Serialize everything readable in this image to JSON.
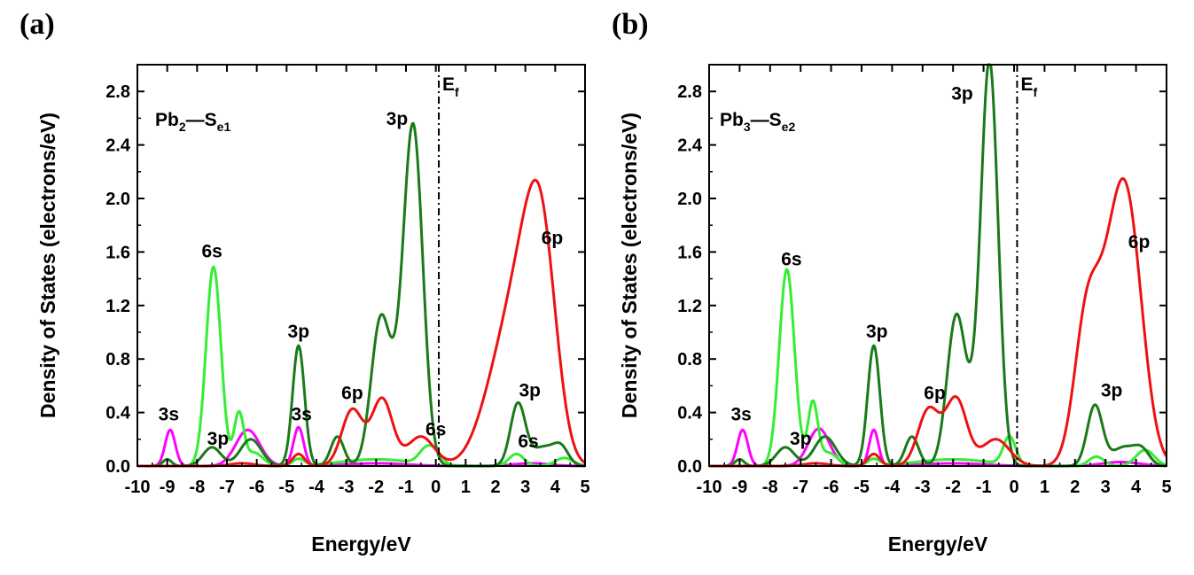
{
  "chart_data": [
    {
      "type": "line",
      "panel_label": "(a)",
      "system_label": {
        "base": "Pb",
        "sub1": "2",
        "bond": "—",
        "atom": "S",
        "sub2": "e1"
      },
      "fermi_label": {
        "base": "E",
        "sub": "f"
      },
      "fermi_energy": 0.1,
      "xlabel": "Energy/eV",
      "ylabel": "Density of States (electrons/eV)",
      "xlim": [
        -10,
        5
      ],
      "ylim": [
        0,
        3.0
      ],
      "xticks": [
        -10,
        -9,
        -8,
        -7,
        -6,
        -5,
        -4,
        -3,
        -2,
        -1,
        0,
        1,
        2,
        3,
        4,
        5
      ],
      "xtick_labels": [
        "-10",
        "-9",
        "-8",
        "-7",
        "-6",
        "-5",
        "-4",
        "-3",
        "-2",
        "-1",
        "0",
        "1",
        "2",
        "3",
        "4",
        "5"
      ],
      "yticks": [
        0.0,
        0.4,
        0.8,
        1.2,
        1.6,
        2.0,
        2.4,
        2.8
      ],
      "ytick_labels": [
        "0.0",
        "0.4",
        "0.8",
        "1.2",
        "1.6",
        "2.0",
        "2.4",
        "2.8"
      ],
      "grid": false,
      "series": [
        {
          "color": "#ff00ff",
          "peaks": [
            [
              -8.9,
              0.27,
              0.17
            ],
            [
              -6.3,
              0.27,
              0.4
            ],
            [
              -4.6,
              0.29,
              0.17
            ],
            [
              -2.0,
              0.02,
              1.0
            ],
            [
              3.2,
              0.02,
              0.6
            ]
          ]
        },
        {
          "color": "#33ee33",
          "peaks": [
            [
              -7.45,
              1.49,
              0.25
            ],
            [
              -6.6,
              0.38,
              0.16
            ],
            [
              -6.1,
              0.1,
              0.3
            ],
            [
              -4.6,
              0.05,
              0.2
            ],
            [
              -2.0,
              0.05,
              1.2
            ],
            [
              -0.3,
              0.12,
              0.25
            ],
            [
              0.05,
              0.06,
              0.2
            ],
            [
              2.7,
              0.09,
              0.25
            ],
            [
              4.3,
              0.06,
              0.3
            ]
          ]
        },
        {
          "color": "#1a7a1a",
          "peaks": [
            [
              -9.0,
              0.05,
              0.15
            ],
            [
              -7.5,
              0.14,
              0.3
            ],
            [
              -6.2,
              0.2,
              0.35
            ],
            [
              -4.6,
              0.9,
              0.2
            ],
            [
              -3.3,
              0.22,
              0.22
            ],
            [
              -1.85,
              1.08,
              0.32
            ],
            [
              -0.75,
              2.48,
              0.32
            ],
            [
              -1.25,
              0.3,
              0.3
            ],
            [
              2.75,
              0.46,
              0.25
            ],
            [
              3.6,
              0.14,
              0.4
            ],
            [
              4.2,
              0.12,
              0.25
            ]
          ]
        },
        {
          "color": "#ee1111",
          "peaks": [
            [
              -6.5,
              0.02,
              0.4
            ],
            [
              -4.6,
              0.09,
              0.2
            ],
            [
              -2.8,
              0.42,
              0.35
            ],
            [
              -1.8,
              0.5,
              0.35
            ],
            [
              -0.5,
              0.22,
              0.45
            ],
            [
              2.3,
              0.8,
              0.7
            ],
            [
              3.55,
              1.6,
              0.5
            ],
            [
              2.9,
              0.6,
              0.5
            ]
          ]
        }
      ],
      "annotations": [
        {
          "text": "6s",
          "x": -7.5,
          "y": 1.56
        },
        {
          "text": "3s",
          "x": -8.95,
          "y": 0.34
        },
        {
          "text": "3p",
          "x": -7.3,
          "y": 0.16
        },
        {
          "text": "3p",
          "x": -4.6,
          "y": 0.96
        },
        {
          "text": "3s",
          "x": -4.5,
          "y": 0.34
        },
        {
          "text": "6p",
          "x": -2.8,
          "y": 0.5
        },
        {
          "text": "3p",
          "x": -1.3,
          "y": 2.55
        },
        {
          "text": "6s",
          "x": 0.0,
          "y": 0.23
        },
        {
          "text": "6p",
          "x": 3.9,
          "y": 1.66
        },
        {
          "text": "3p",
          "x": 3.15,
          "y": 0.52
        },
        {
          "text": "6s",
          "x": 3.1,
          "y": 0.14
        }
      ]
    },
    {
      "type": "line",
      "panel_label": "(b)",
      "system_label": {
        "base": "Pb",
        "sub1": "3",
        "bond": "—",
        "atom": "S",
        "sub2": "e2"
      },
      "fermi_label": {
        "base": "E",
        "sub": "f"
      },
      "fermi_energy": 0.1,
      "xlabel": "Energy/eV",
      "ylabel": "Density of States (electrons/eV)",
      "xlim": [
        -10,
        5
      ],
      "ylim": [
        0,
        3.0
      ],
      "xticks": [
        -10,
        -9,
        -8,
        -7,
        -6,
        -5,
        -4,
        -3,
        -2,
        -1,
        0,
        1,
        2,
        3,
        4,
        5
      ],
      "xtick_labels": [
        "-10",
        "-9",
        "-8",
        "-7",
        "-6",
        "-5",
        "-4",
        "-3",
        "-2",
        "-1",
        "0",
        "1",
        "2",
        "3",
        "4",
        "5"
      ],
      "yticks": [
        0.0,
        0.4,
        0.8,
        1.2,
        1.6,
        2.0,
        2.4,
        2.8
      ],
      "ytick_labels": [
        "0.0",
        "0.4",
        "0.8",
        "1.2",
        "1.6",
        "2.0",
        "2.4",
        "2.8"
      ],
      "grid": false,
      "series": [
        {
          "color": "#ff00ff",
          "peaks": [
            [
              -8.9,
              0.27,
              0.17
            ],
            [
              -6.4,
              0.28,
              0.35
            ],
            [
              -4.6,
              0.27,
              0.15
            ],
            [
              -2.0,
              0.02,
              1.0
            ],
            [
              3.5,
              0.03,
              0.6
            ]
          ]
        },
        {
          "color": "#33ee33",
          "peaks": [
            [
              -7.45,
              1.47,
              0.25
            ],
            [
              -6.6,
              0.46,
              0.16
            ],
            [
              -6.1,
              0.1,
              0.3
            ],
            [
              -4.6,
              0.05,
              0.2
            ],
            [
              -2.0,
              0.05,
              1.2
            ],
            [
              -0.15,
              0.21,
              0.2
            ],
            [
              2.7,
              0.07,
              0.25
            ],
            [
              4.3,
              0.12,
              0.3
            ]
          ]
        },
        {
          "color": "#1a7a1a",
          "peaks": [
            [
              -9.0,
              0.05,
              0.15
            ],
            [
              -7.5,
              0.14,
              0.3
            ],
            [
              -6.2,
              0.22,
              0.35
            ],
            [
              -4.6,
              0.9,
              0.2
            ],
            [
              -3.35,
              0.22,
              0.22
            ],
            [
              -1.9,
              1.1,
              0.3
            ],
            [
              -0.8,
              2.97,
              0.28
            ],
            [
              -1.3,
              0.25,
              0.3
            ],
            [
              2.65,
              0.45,
              0.25
            ],
            [
              3.6,
              0.14,
              0.4
            ],
            [
              4.2,
              0.1,
              0.25
            ]
          ]
        },
        {
          "color": "#ee1111",
          "peaks": [
            [
              -6.5,
              0.02,
              0.4
            ],
            [
              -4.6,
              0.09,
              0.2
            ],
            [
              -2.8,
              0.42,
              0.35
            ],
            [
              -1.9,
              0.5,
              0.35
            ],
            [
              -0.6,
              0.2,
              0.45
            ],
            [
              2.35,
              0.88,
              0.4
            ],
            [
              3.75,
              1.58,
              0.5
            ],
            [
              3.1,
              0.95,
              0.55
            ]
          ]
        }
      ],
      "annotations": [
        {
          "text": "6s",
          "x": -7.3,
          "y": 1.5
        },
        {
          "text": "3s",
          "x": -8.95,
          "y": 0.34
        },
        {
          "text": "3p",
          "x": -7.0,
          "y": 0.16
        },
        {
          "text": "3p",
          "x": -4.5,
          "y": 0.96
        },
        {
          "text": "6p",
          "x": -2.6,
          "y": 0.5
        },
        {
          "text": "3p",
          "x": -1.7,
          "y": 2.74
        },
        {
          "text": "6p",
          "x": 4.1,
          "y": 1.63
        },
        {
          "text": "3p",
          "x": 3.2,
          "y": 0.52
        }
      ]
    }
  ]
}
